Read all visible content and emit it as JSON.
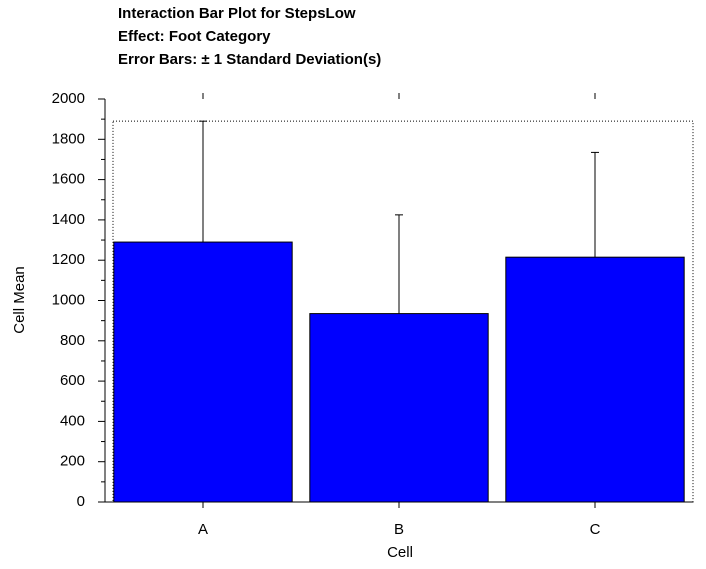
{
  "chart_data": {
    "type": "bar",
    "title": "Interaction Bar Plot for StepsLow",
    "subtitle": "Effect: Foot Category",
    "note": "Error Bars: ± 1 Standard Deviation(s)",
    "x_label": "Cell",
    "y_label": "Cell Mean",
    "categories": [
      "A",
      "B",
      "C"
    ],
    "values": [
      1290,
      935,
      1215
    ],
    "errors": [
      600,
      490,
      520
    ],
    "color": "#0000ff",
    "ylim": [
      0,
      2000
    ],
    "yticks": [
      0,
      200,
      400,
      600,
      800,
      1000,
      1200,
      1400,
      1600,
      1800,
      2000
    ]
  }
}
